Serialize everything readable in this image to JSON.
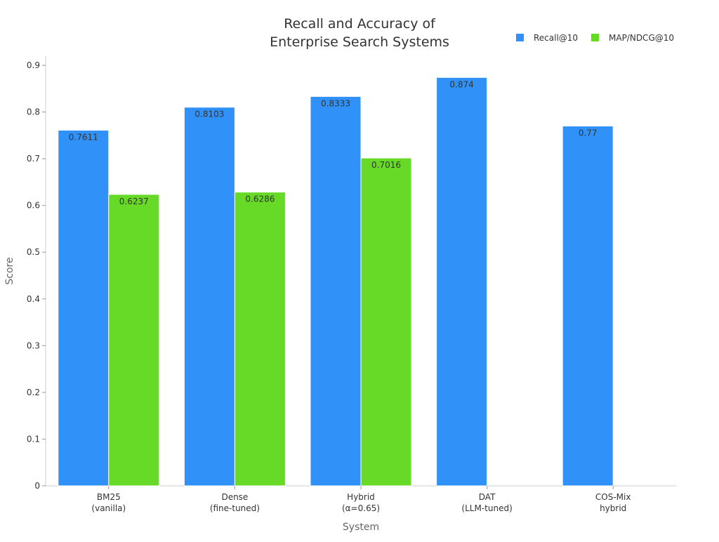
{
  "chart_data": {
    "type": "bar",
    "title_lines": [
      "Recall and Accuracy of",
      "Enterprise Search Systems"
    ],
    "xlabel": "System",
    "ylabel": "Score",
    "ylim": [
      0,
      0.92
    ],
    "yticks": [
      "0",
      "0.1",
      "0.2",
      "0.3",
      "0.4",
      "0.5",
      "0.6",
      "0.7",
      "0.8",
      "0.9"
    ],
    "categories": [
      [
        "BM25",
        "(vanilla)"
      ],
      [
        "Dense",
        "(fine-tuned)"
      ],
      [
        "Hybrid",
        "(α=0.65)"
      ],
      [
        "DAT",
        "(LLM-tuned)"
      ],
      [
        "COS-Mix",
        "hybrid"
      ]
    ],
    "series": [
      {
        "name": "Recall@10",
        "color": "#3092f8",
        "values": [
          0.7611,
          0.8103,
          0.8333,
          0.874,
          0.77
        ],
        "labels": [
          "0.7611",
          "0.8103",
          "0.8333",
          "0.874",
          "0.77"
        ]
      },
      {
        "name": "MAP/NDCG@10",
        "color": "#66da26",
        "values": [
          0.6237,
          0.6286,
          0.7016,
          null,
          null
        ],
        "labels": [
          "0.6237",
          "0.6286",
          "0.7016",
          "",
          ""
        ]
      }
    ],
    "legend_position": "top-right",
    "grid": false
  }
}
